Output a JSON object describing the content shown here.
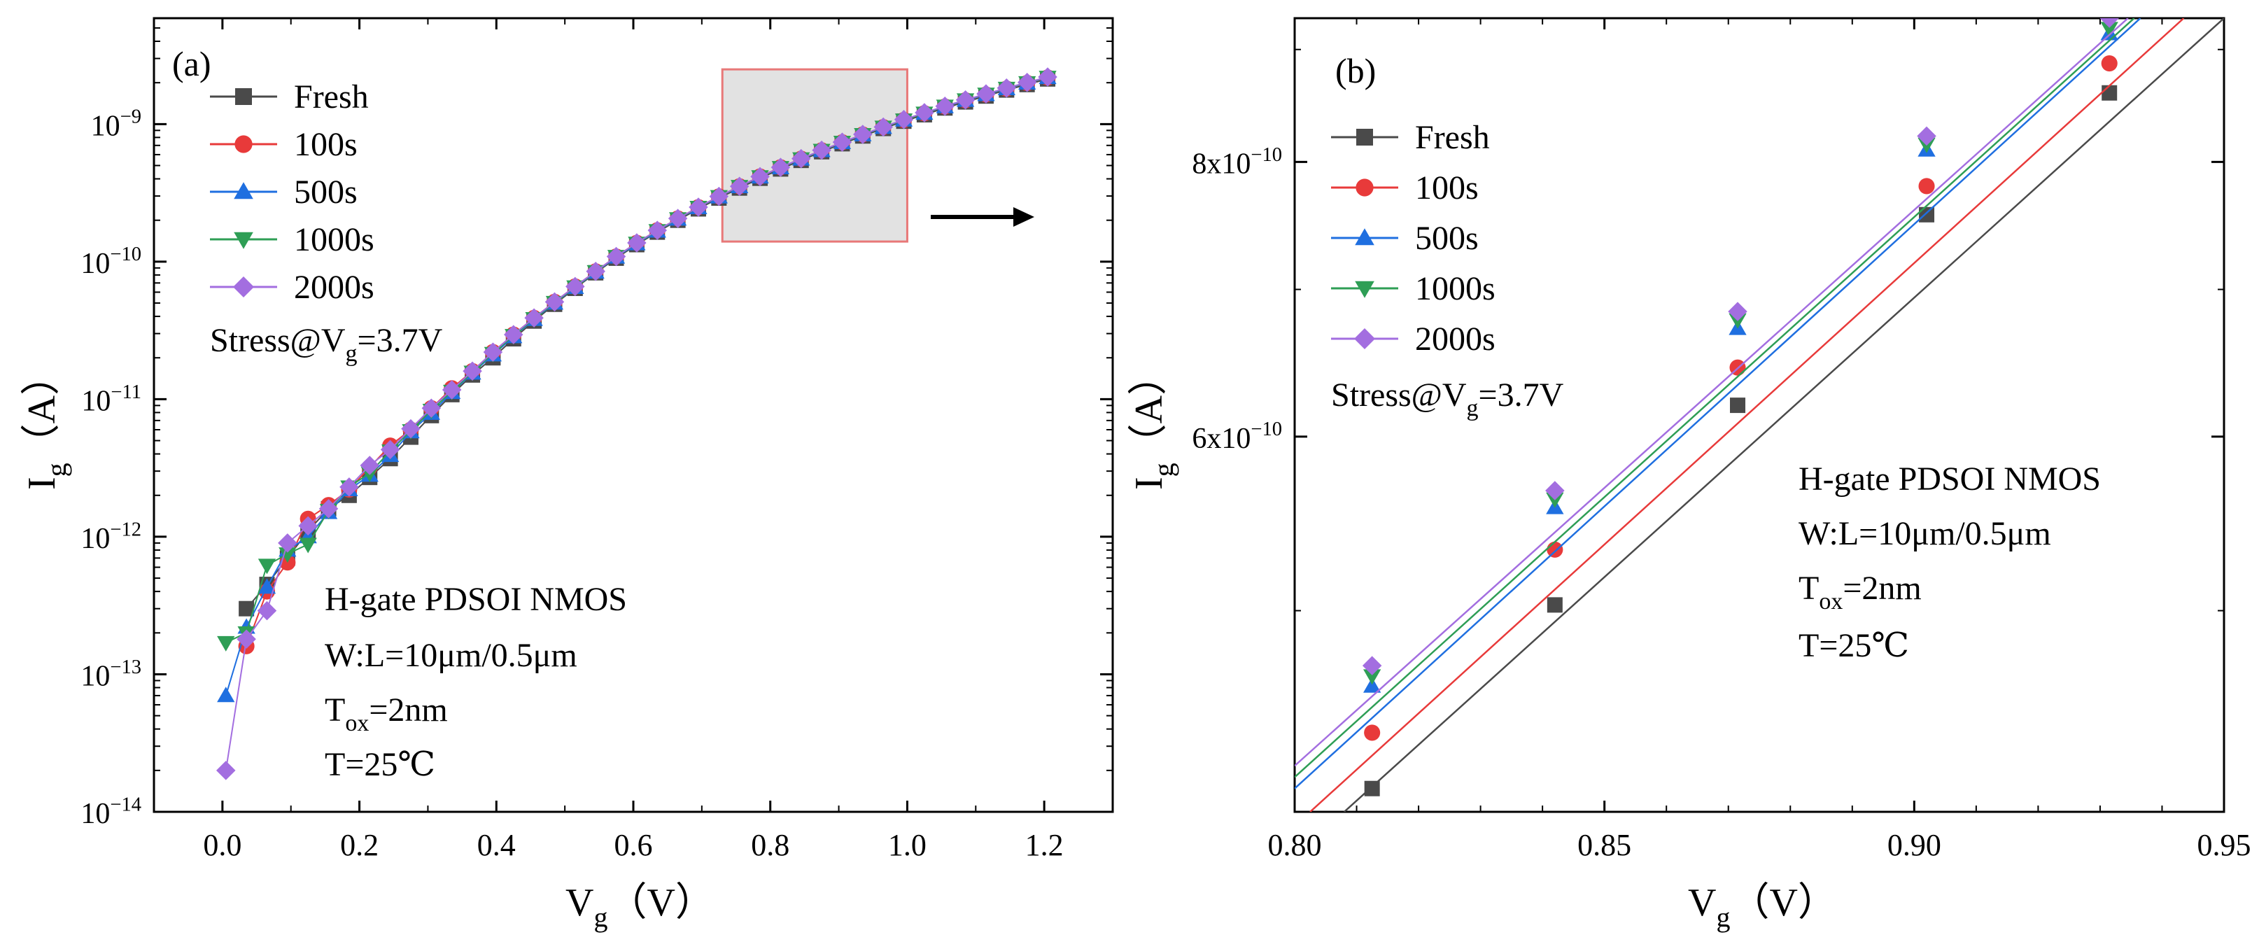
{
  "chart_data": [
    {
      "panel_label": "(a)",
      "type": "scatter",
      "xlabel": "V",
      "xlabel_sub": "g",
      "xlabel_unit": "（V）",
      "ylabel": "I",
      "ylabel_sub": "g",
      "ylabel_unit": "（A）",
      "xlim": [
        -0.1,
        1.3
      ],
      "ylim_log10": [
        -14,
        -8.23
      ],
      "y_scale": "log",
      "xticks": [
        0.0,
        0.2,
        0.4,
        0.6,
        0.8,
        1.0,
        1.2
      ],
      "xtick_labels": [
        "0.0",
        "0.2",
        "0.4",
        "0.6",
        "0.8",
        "1.0",
        "1.2"
      ],
      "yticks_exp": [
        -14,
        -13,
        -12,
        -11,
        -10,
        -9
      ],
      "ytick_base": "10",
      "ytick_exps": [
        "−14",
        "−13",
        "−12",
        "−11",
        "−10",
        "−9"
      ],
      "legend_position": "top-left",
      "stress_text": {
        "pre": "Stress@V",
        "sub": "g",
        "post": "=3.7V"
      },
      "device_text": {
        "line1": "H-gate PDSOI NMOS",
        "line2": "W:L=10μm/0.5μm",
        "line3_pre": "T",
        "line3_sub": "ox",
        "line3_post": "=2nm",
        "line4": "T=25℃"
      },
      "zoom_box": {
        "x": [
          0.73,
          1.0
        ],
        "y": [
          1.4e-10,
          2.5e-09
        ]
      },
      "x": [
        0.005,
        0.035,
        0.065,
        0.095,
        0.125,
        0.155,
        0.185,
        0.215,
        0.245,
        0.275,
        0.305,
        0.335,
        0.365,
        0.395,
        0.425,
        0.455,
        0.485,
        0.515,
        0.545,
        0.575,
        0.605,
        0.635,
        0.665,
        0.695,
        0.725,
        0.755,
        0.785,
        0.815,
        0.845,
        0.875,
        0.905,
        0.935,
        0.965,
        0.995,
        1.025,
        1.055,
        1.085,
        1.115,
        1.145,
        1.175,
        1.205
      ],
      "series": [
        {
          "name": "Fresh",
          "color": "#4a4a4a",
          "marker": "square",
          "values": [
            null,
            3e-13,
            4.5e-13,
            7e-13,
            1.1e-12,
            1.6e-12,
            2e-12,
            2.7e-12,
            3.7e-12,
            5.3e-12,
            7.6e-12,
            1.08e-11,
            1.5e-11,
            2e-11,
            2.75e-11,
            3.7e-11,
            4.9e-11,
            6.4e-11,
            8.3e-11,
            1.06e-10,
            1.33e-10,
            1.64e-10,
            2e-10,
            2.42e-10,
            2.9e-10,
            3.43e-10,
            4.04e-10,
            4.72e-10,
            5.45e-10,
            6.3e-10,
            7.2e-10,
            8.2e-10,
            9.3e-10,
            1.05e-09,
            1.17e-09,
            1.31e-09,
            1.45e-09,
            1.6e-09,
            1.77e-09,
            1.94e-09,
            2.13e-09
          ]
        },
        {
          "name": "100s",
          "color": "#e83a3a",
          "marker": "circle",
          "values": [
            null,
            1.6e-13,
            4e-13,
            6.5e-13,
            1.35e-12,
            1.7e-12,
            2.2e-12,
            3.2e-12,
            4.6e-12,
            6e-12,
            8.6e-12,
            1.2e-11,
            1.6e-11,
            2.2e-11,
            2.95e-11,
            3.9e-11,
            5.1e-11,
            6.6e-11,
            8.5e-11,
            1.09e-10,
            1.37e-10,
            1.69e-10,
            2.06e-10,
            2.49e-10,
            2.98e-10,
            3.53e-10,
            4.16e-10,
            4.85e-10,
            5.6e-10,
            6.45e-10,
            7.38e-10,
            8.4e-10,
            9.5e-10,
            1.07e-09,
            1.2e-09,
            1.34e-09,
            1.49e-09,
            1.64e-09,
            1.81e-09,
            1.99e-09,
            2.18e-09
          ]
        },
        {
          "name": "500s",
          "color": "#1f6fe0",
          "marker": "triangle-up",
          "values": [
            7e-14,
            2.2e-13,
            4.3e-13,
            8e-13,
            1e-12,
            1.5e-12,
            2.2e-12,
            2.8e-12,
            3.9e-12,
            5.8e-12,
            7.9e-12,
            1.12e-11,
            1.55e-11,
            2.1e-11,
            2.85e-11,
            3.8e-11,
            5e-11,
            6.5e-11,
            8.4e-11,
            1.08e-10,
            1.35e-10,
            1.67e-10,
            2.04e-10,
            2.47e-10,
            2.96e-10,
            3.51e-10,
            4.13e-10,
            4.82e-10,
            5.57e-10,
            6.42e-10,
            7.35e-10,
            8.37e-10,
            9.47e-10,
            1.07e-09,
            1.2e-09,
            1.34e-09,
            1.49e-09,
            1.64e-09,
            1.81e-09,
            1.99e-09,
            2.18e-09
          ]
        },
        {
          "name": "1000s",
          "color": "#2e9e55",
          "marker": "triangle-down",
          "values": [
            1.7e-13,
            2e-13,
            6.2e-13,
            7.5e-13,
            8.8e-13,
            1.55e-12,
            2.3e-12,
            2.9e-12,
            4.2e-12,
            5.9e-12,
            8.3e-12,
            1.14e-11,
            1.57e-11,
            2.15e-11,
            2.9e-11,
            3.85e-11,
            5.05e-11,
            6.55e-11,
            8.45e-11,
            1.09e-10,
            1.36e-10,
            1.68e-10,
            2.05e-10,
            2.48e-10,
            2.97e-10,
            3.52e-10,
            4.14e-10,
            4.83e-10,
            5.59e-10,
            6.44e-10,
            7.37e-10,
            8.39e-10,
            9.5e-10,
            1.07e-09,
            1.2e-09,
            1.35e-09,
            1.5e-09,
            1.65e-09,
            1.82e-09,
            2e-09,
            2.19e-09
          ]
        },
        {
          "name": "2000s",
          "color": "#a36ee0",
          "marker": "diamond",
          "values": [
            2e-14,
            1.8e-13,
            2.9e-13,
            9e-13,
            1.2e-12,
            1.6e-12,
            2.3e-12,
            3.3e-12,
            4.3e-12,
            6.1e-12,
            8.6e-12,
            1.17e-11,
            1.6e-11,
            2.2e-11,
            2.95e-11,
            3.9e-11,
            5.1e-11,
            6.6e-11,
            8.5e-11,
            1.09e-10,
            1.37e-10,
            1.69e-10,
            2.06e-10,
            2.49e-10,
            2.98e-10,
            3.53e-10,
            4.15e-10,
            4.85e-10,
            5.61e-10,
            6.46e-10,
            7.39e-10,
            8.42e-10,
            9.53e-10,
            1.08e-09,
            1.21e-09,
            1.35e-09,
            1.5e-09,
            1.66e-09,
            1.83e-09,
            2.01e-09,
            2.2e-09
          ]
        }
      ]
    },
    {
      "panel_label": "(b)",
      "type": "scatter",
      "xlabel": "V",
      "xlabel_sub": "g",
      "xlabel_unit": "（V）",
      "ylabel": "I",
      "ylabel_sub": "g",
      "ylabel_unit": "（A）",
      "xlim": [
        0.8,
        0.95
      ],
      "ylim": [
        4.05e-10,
        9.3e-10
      ],
      "y_scale": "log",
      "xticks": [
        0.8,
        0.85,
        0.9,
        0.95
      ],
      "xtick_labels": [
        "0.80",
        "0.85",
        "0.90",
        "0.95"
      ],
      "yticks": [
        6e-10,
        8e-10
      ],
      "ytick_labels": [
        {
          "mant": "6x10",
          "exp": "−10"
        },
        {
          "mant": "8x10",
          "exp": "−10"
        }
      ],
      "legend_position": "top-left",
      "stress_text": {
        "pre": "Stress@V",
        "sub": "g",
        "post": "=3.7V"
      },
      "device_text": {
        "line1": "H-gate PDSOI NMOS",
        "line2": "W:L=10μm/0.5μm",
        "line3_pre": "T",
        "line3_sub": "ox",
        "line3_post": "=2nm",
        "line4": "T=25℃"
      },
      "x": [
        0.8125,
        0.842,
        0.8715,
        0.902,
        0.9315
      ],
      "series": [
        {
          "name": "Fresh",
          "color": "#4a4a4a",
          "marker": "square",
          "values": [
            4.15e-10,
            5.03e-10,
            6.2e-10,
            7.57e-10,
            8.6e-10
          ],
          "fit": [
            [
              0.808,
              4.05e-10
            ],
            [
              0.95,
              9.3e-10
            ]
          ]
        },
        {
          "name": "100s",
          "color": "#e83a3a",
          "marker": "circle",
          "values": [
            4.4e-10,
            5.33e-10,
            6.45e-10,
            7.8e-10,
            8.87e-10
          ],
          "fit": [
            [
              0.8025,
              4.05e-10
            ],
            [
              0.9435,
              9.3e-10
            ]
          ]
        },
        {
          "name": "500s",
          "color": "#1f6fe0",
          "marker": "triangle-up",
          "values": [
            4.62e-10,
            5.57e-10,
            6.72e-10,
            8.1e-10,
            9.15e-10
          ],
          "fit": [
            [
              0.8,
              4.15e-10
            ],
            [
              0.9365,
              9.3e-10
            ]
          ]
        },
        {
          "name": "1000s",
          "color": "#2e9e55",
          "marker": "triangle-down",
          "values": [
            4.67e-10,
            5.62e-10,
            6.78e-10,
            8.15e-10,
            9.2e-10
          ],
          "fit": [
            [
              0.8,
              4.2e-10
            ],
            [
              0.9355,
              9.3e-10
            ]
          ]
        },
        {
          "name": "2000s",
          "color": "#a36ee0",
          "marker": "diamond",
          "values": [
            4.72e-10,
            5.67e-10,
            6.84e-10,
            8.22e-10,
            9.3e-10
          ],
          "fit": [
            [
              0.8,
              4.25e-10
            ],
            [
              0.9345,
              9.3e-10
            ]
          ]
        }
      ]
    }
  ]
}
